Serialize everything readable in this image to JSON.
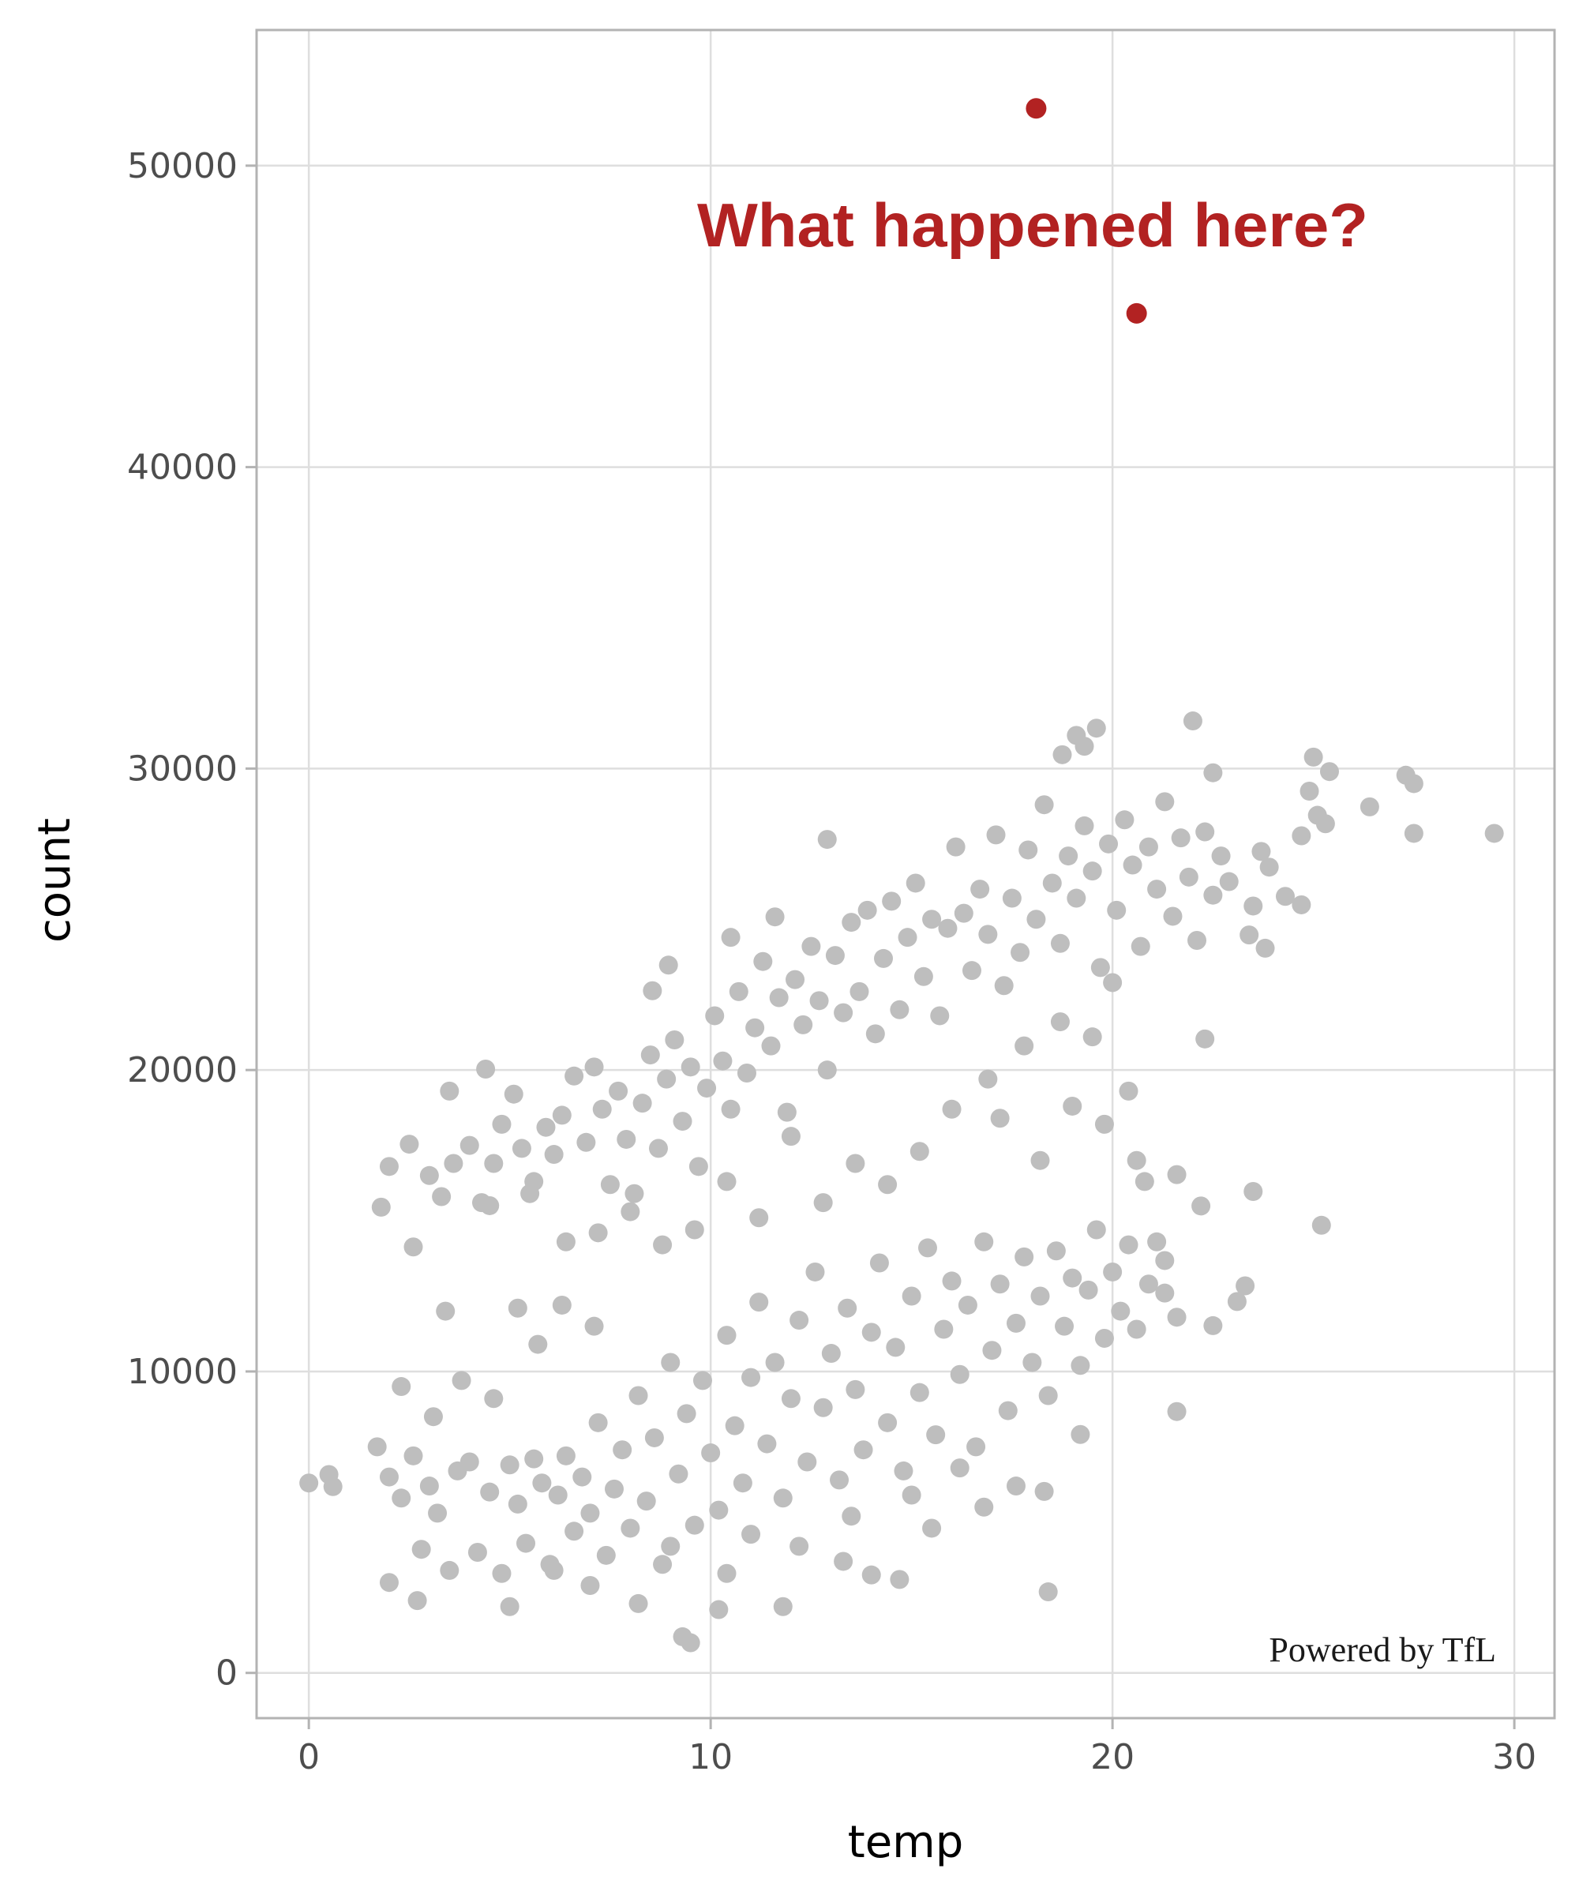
{
  "chart_data": {
    "type": "scatter",
    "xlabel": "temp",
    "ylabel": "count",
    "xlim": [
      -1.3,
      31
    ],
    "ylim": [
      -1500,
      54500
    ],
    "xticks": [
      0,
      10,
      20,
      30
    ],
    "yticks": [
      0,
      10000,
      20000,
      30000,
      40000,
      50000
    ],
    "xtick_labels": [
      "0",
      "10",
      "20",
      "30"
    ],
    "ytick_labels": [
      "0",
      "10000",
      "20000",
      "30000",
      "40000",
      "50000"
    ],
    "grid": true,
    "colors": {
      "points": "#bebebe",
      "highlight": "#b22222",
      "grid": "#dedede",
      "border": "#b3b3b3"
    },
    "annotation": "What happened here?",
    "caption": "Powered by TfL",
    "highlighted_points": [
      [
        18.1,
        51900
      ],
      [
        20.6,
        45100
      ]
    ],
    "points": [
      [
        0,
        6300
      ],
      [
        0.5,
        6580
      ],
      [
        0.6,
        6180
      ],
      [
        1.8,
        15450
      ],
      [
        2.0,
        16800
      ],
      [
        2.5,
        17540
      ],
      [
        2.6,
        14130
      ],
      [
        3.5,
        19300
      ],
      [
        4.4,
        20030
      ],
      [
        29.5,
        27850
      ],
      [
        27.3,
        29780
      ],
      [
        27.5,
        29500
      ],
      [
        27.5,
        27850
      ],
      [
        26.4,
        28730
      ],
      [
        25.0,
        30380
      ],
      [
        25.4,
        29900
      ],
      [
        24.9,
        29250
      ],
      [
        25.3,
        28170
      ],
      [
        24.7,
        27770
      ],
      [
        25.1,
        28450
      ],
      [
        24.7,
        25480
      ],
      [
        24.3,
        25760
      ],
      [
        23.9,
        26730
      ],
      [
        23.8,
        24040
      ],
      [
        23.4,
        24480
      ],
      [
        23.5,
        25440
      ],
      [
        22.9,
        26250
      ],
      [
        23.7,
        27250
      ],
      [
        22.5,
        29860
      ],
      [
        22.0,
        31580
      ],
      [
        19.6,
        31340
      ],
      [
        19.1,
        31100
      ],
      [
        19.3,
        30740
      ],
      [
        18.75,
        30460
      ],
      [
        22.3,
        21030
      ],
      [
        25.2,
        14850
      ],
      [
        23.5,
        15970
      ],
      [
        21.6,
        16530
      ],
      [
        22.2,
        15490
      ],
      [
        21.6,
        8670
      ],
      [
        22.5,
        11520
      ],
      [
        23.1,
        12320
      ],
      [
        23.3,
        12840
      ],
      [
        18.4,
        2690
      ],
      [
        18.3,
        6020
      ],
      [
        19.2,
        7910
      ],
      [
        12.9,
        27650
      ],
      [
        11.6,
        25080
      ],
      [
        8.95,
        23480
      ],
      [
        8.55,
        22630
      ],
      [
        10.5,
        24400
      ],
      [
        21.3,
        13680
      ],
      [
        3.0,
        16500
      ],
      [
        3.3,
        15800
      ],
      [
        3.6,
        16900
      ],
      [
        4.0,
        17500
      ],
      [
        4.3,
        15600
      ],
      [
        4.6,
        16900
      ],
      [
        4.8,
        18200
      ],
      [
        5.1,
        19200
      ],
      [
        5.3,
        17400
      ],
      [
        5.6,
        16300
      ],
      [
        5.9,
        18100
      ],
      [
        6.1,
        17200
      ],
      [
        6.3,
        18500
      ],
      [
        6.6,
        19800
      ],
      [
        6.9,
        17600
      ],
      [
        7.1,
        20100
      ],
      [
        7.3,
        18700
      ],
      [
        7.5,
        16200
      ],
      [
        7.7,
        19300
      ],
      [
        7.9,
        17700
      ],
      [
        8.1,
        15900
      ],
      [
        8.3,
        18900
      ],
      [
        8.5,
        20500
      ],
      [
        8.7,
        17400
      ],
      [
        8.9,
        19700
      ],
      [
        9.1,
        21000
      ],
      [
        9.3,
        18300
      ],
      [
        9.5,
        20100
      ],
      [
        9.7,
        16800
      ],
      [
        9.9,
        19400
      ],
      [
        10.1,
        21800
      ],
      [
        10.3,
        20300
      ],
      [
        10.5,
        18700
      ],
      [
        10.7,
        22600
      ],
      [
        10.9,
        19900
      ],
      [
        11.1,
        21400
      ],
      [
        11.3,
        23600
      ],
      [
        11.5,
        20800
      ],
      [
        11.7,
        22400
      ],
      [
        11.9,
        18600
      ],
      [
        12.1,
        23000
      ],
      [
        12.3,
        21500
      ],
      [
        12.5,
        24100
      ],
      [
        12.7,
        22300
      ],
      [
        12.9,
        20000
      ],
      [
        13.1,
        23800
      ],
      [
        13.3,
        21900
      ],
      [
        13.5,
        24900
      ],
      [
        13.7,
        22600
      ],
      [
        13.9,
        25300
      ],
      [
        14.1,
        21200
      ],
      [
        14.3,
        23700
      ],
      [
        14.5,
        25600
      ],
      [
        14.7,
        22000
      ],
      [
        14.9,
        24400
      ],
      [
        15.1,
        26200
      ],
      [
        15.3,
        23100
      ],
      [
        15.5,
        25000
      ],
      [
        15.7,
        21800
      ],
      [
        15.9,
        24700
      ],
      [
        16.1,
        27400
      ],
      [
        16.3,
        25200
      ],
      [
        16.5,
        23300
      ],
      [
        16.7,
        26000
      ],
      [
        16.9,
        24500
      ],
      [
        17.1,
        27800
      ],
      [
        17.3,
        22800
      ],
      [
        17.5,
        25700
      ],
      [
        17.7,
        23900
      ],
      [
        17.9,
        27300
      ],
      [
        18.1,
        25000
      ],
      [
        18.3,
        28800
      ],
      [
        18.5,
        26200
      ],
      [
        18.7,
        24200
      ],
      [
        18.9,
        27100
      ],
      [
        19.1,
        25700
      ],
      [
        19.3,
        28100
      ],
      [
        19.5,
        26600
      ],
      [
        19.7,
        23400
      ],
      [
        19.9,
        27500
      ],
      [
        20.1,
        25300
      ],
      [
        20.3,
        28300
      ],
      [
        20.5,
        26800
      ],
      [
        20.7,
        24100
      ],
      [
        20.9,
        27400
      ],
      [
        21.1,
        26000
      ],
      [
        21.3,
        28900
      ],
      [
        21.5,
        25100
      ],
      [
        21.7,
        27700
      ],
      [
        21.9,
        26400
      ],
      [
        22.1,
        24300
      ],
      [
        22.3,
        27900
      ],
      [
        22.5,
        25800
      ],
      [
        22.7,
        27100
      ],
      [
        20.0,
        22900
      ],
      [
        19.5,
        21100
      ],
      [
        18.7,
        21600
      ],
      [
        17.8,
        20800
      ],
      [
        16.9,
        19700
      ],
      [
        16.0,
        18700
      ],
      [
        15.2,
        17300
      ],
      [
        14.4,
        16200
      ],
      [
        13.6,
        16900
      ],
      [
        12.8,
        15600
      ],
      [
        12.0,
        17800
      ],
      [
        11.2,
        15100
      ],
      [
        10.4,
        16300
      ],
      [
        9.6,
        14700
      ],
      [
        8.8,
        14200
      ],
      [
        8.0,
        15300
      ],
      [
        7.2,
        14600
      ],
      [
        6.4,
        14300
      ],
      [
        5.5,
        15900
      ],
      [
        4.5,
        15500
      ],
      [
        17.2,
        18400
      ],
      [
        18.2,
        17000
      ],
      [
        19.0,
        18800
      ],
      [
        19.8,
        18200
      ],
      [
        20.4,
        19300
      ],
      [
        20.8,
        16300
      ],
      [
        20.6,
        17000
      ],
      [
        1.7,
        7500
      ],
      [
        2.0,
        6500
      ],
      [
        2.3,
        5800
      ],
      [
        2.6,
        7200
      ],
      [
        2.8,
        4100
      ],
      [
        3.0,
        6200
      ],
      [
        3.2,
        5300
      ],
      [
        3.5,
        3400
      ],
      [
        3.7,
        6700
      ],
      [
        4.0,
        7000
      ],
      [
        4.2,
        4000
      ],
      [
        4.5,
        6000
      ],
      [
        4.8,
        3300
      ],
      [
        5.0,
        6900
      ],
      [
        5.2,
        5600
      ],
      [
        5.4,
        4300
      ],
      [
        5.6,
        7100
      ],
      [
        5.8,
        6300
      ],
      [
        6.0,
        3600
      ],
      [
        6.2,
        5900
      ],
      [
        6.4,
        7200
      ],
      [
        6.6,
        4700
      ],
      [
        6.8,
        6500
      ],
      [
        7.0,
        5300
      ],
      [
        7.2,
        8300
      ],
      [
        7.4,
        3900
      ],
      [
        7.6,
        6100
      ],
      [
        7.8,
        7400
      ],
      [
        8.0,
        4800
      ],
      [
        8.2,
        9200
      ],
      [
        8.4,
        5700
      ],
      [
        8.6,
        7800
      ],
      [
        8.8,
        3600
      ],
      [
        9.0,
        10300
      ],
      [
        9.2,
        6600
      ],
      [
        9.4,
        8600
      ],
      [
        9.6,
        4900
      ],
      [
        9.8,
        9700
      ],
      [
        10.0,
        7300
      ],
      [
        10.2,
        5400
      ],
      [
        10.4,
        11200
      ],
      [
        10.6,
        8200
      ],
      [
        10.8,
        6300
      ],
      [
        11.0,
        9800
      ],
      [
        11.2,
        12300
      ],
      [
        11.4,
        7600
      ],
      [
        11.6,
        10300
      ],
      [
        11.8,
        5800
      ],
      [
        12.0,
        9100
      ],
      [
        12.2,
        11700
      ],
      [
        12.4,
        7000
      ],
      [
        12.6,
        13300
      ],
      [
        12.8,
        8800
      ],
      [
        13.0,
        10600
      ],
      [
        13.2,
        6400
      ],
      [
        13.4,
        12100
      ],
      [
        13.6,
        9400
      ],
      [
        13.8,
        7400
      ],
      [
        14.0,
        11300
      ],
      [
        14.2,
        13600
      ],
      [
        14.4,
        8300
      ],
      [
        14.6,
        10800
      ],
      [
        14.8,
        6700
      ],
      [
        15.0,
        12500
      ],
      [
        15.2,
        9300
      ],
      [
        15.4,
        14100
      ],
      [
        15.6,
        7900
      ],
      [
        15.8,
        11400
      ],
      [
        16.0,
        13000
      ],
      [
        16.2,
        9900
      ],
      [
        16.4,
        12200
      ],
      [
        16.6,
        7500
      ],
      [
        16.8,
        14300
      ],
      [
        17.0,
        10700
      ],
      [
        17.2,
        12900
      ],
      [
        17.4,
        8700
      ],
      [
        17.6,
        11600
      ],
      [
        17.8,
        13800
      ],
      [
        18.0,
        10300
      ],
      [
        18.2,
        12500
      ],
      [
        18.4,
        9200
      ],
      [
        18.6,
        14000
      ],
      [
        18.8,
        11500
      ],
      [
        19.0,
        13100
      ],
      [
        19.2,
        10200
      ],
      [
        19.4,
        12700
      ],
      [
        19.6,
        14700
      ],
      [
        19.8,
        11100
      ],
      [
        20.0,
        13300
      ],
      [
        20.2,
        12000
      ],
      [
        20.4,
        14200
      ],
      [
        20.6,
        11400
      ],
      [
        20.9,
        12900
      ],
      [
        21.1,
        14300
      ],
      [
        21.3,
        12600
      ],
      [
        21.6,
        11800
      ],
      [
        3.4,
        12000
      ],
      [
        2.3,
        9500
      ],
      [
        3.1,
        8500
      ],
      [
        3.8,
        9700
      ],
      [
        4.6,
        9100
      ],
      [
        5.2,
        12100
      ],
      [
        5.7,
        10900
      ],
      [
        6.3,
        12200
      ],
      [
        7.1,
        11500
      ],
      [
        2.0,
        3000
      ],
      [
        2.7,
        2400
      ],
      [
        5.0,
        2200
      ],
      [
        9.3,
        1200
      ],
      [
        9.5,
        1000
      ],
      [
        10.2,
        2100
      ],
      [
        11.8,
        2200
      ],
      [
        10.4,
        3300
      ],
      [
        14.7,
        3100
      ],
      [
        14.0,
        3250
      ],
      [
        13.3,
        3700
      ],
      [
        7.0,
        2900
      ],
      [
        8.2,
        2300
      ],
      [
        6.1,
        3400
      ],
      [
        12.2,
        4200
      ],
      [
        13.5,
        5200
      ],
      [
        15.5,
        4800
      ],
      [
        16.2,
        6800
      ],
      [
        16.8,
        5500
      ],
      [
        17.6,
        6200
      ],
      [
        15.0,
        5900
      ],
      [
        11.0,
        4600
      ],
      [
        9.0,
        4200
      ]
    ]
  }
}
